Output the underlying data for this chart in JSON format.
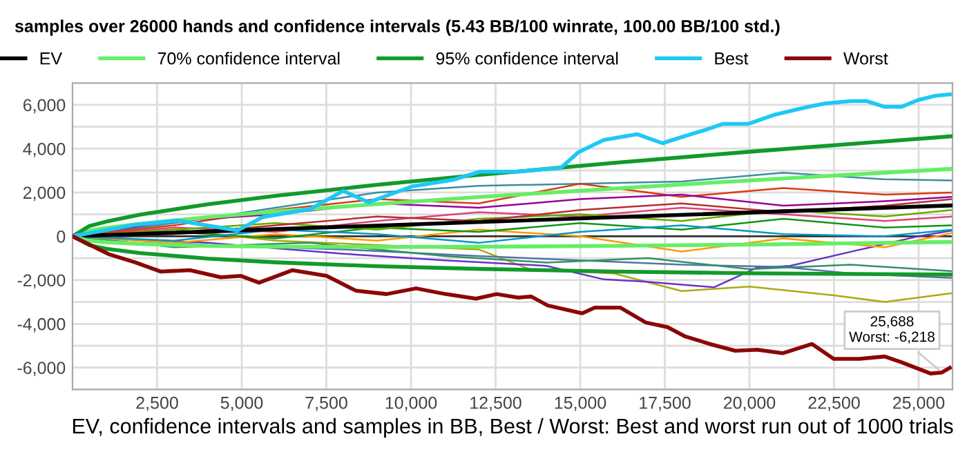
{
  "chart_data": {
    "type": "line",
    "title": "samples over 26000 hands and confidence intervals (5.43 BB/100 winrate, 100.00 BB/100 std.)",
    "xlabel": "EV, confidence intervals and samples in BB, Best / Worst: Best and worst run out of 1000 trials",
    "xlim": [
      0,
      26000
    ],
    "xticks": [
      {
        "value": 2500,
        "label": "2,500"
      },
      {
        "value": 5000,
        "label": "5,000"
      },
      {
        "value": 7500,
        "label": "7,500"
      },
      {
        "value": 10000,
        "label": "10,000"
      },
      {
        "value": 12500,
        "label": "12,500"
      },
      {
        "value": 15000,
        "label": "15,000"
      },
      {
        "value": 17500,
        "label": "17,500"
      },
      {
        "value": 20000,
        "label": "20,000"
      },
      {
        "value": 22500,
        "label": "22,500"
      },
      {
        "value": 25000,
        "label": "25,000"
      }
    ],
    "ylim": [
      -7000,
      7000
    ],
    "yticks": [
      {
        "value": -7000,
        "label": null
      },
      {
        "value": -6000,
        "label": "-6,000"
      },
      {
        "value": -5000,
        "label": null
      },
      {
        "value": -4000,
        "label": "-4,000"
      },
      {
        "value": -3000,
        "label": null
      },
      {
        "value": -2000,
        "label": "-2,000"
      },
      {
        "value": -1000,
        "label": null
      },
      0,
      {
        "value": 1000,
        "label": null
      },
      {
        "value": 2000,
        "label": "2,000"
      },
      {
        "value": 3000,
        "label": null
      },
      {
        "value": 4000,
        "label": "4,000"
      },
      {
        "value": 5000,
        "label": null
      },
      {
        "value": 6000,
        "label": "6,000"
      },
      {
        "value": 7000,
        "label": null
      }
    ],
    "grid": true,
    "legend": "top",
    "marker": "none",
    "line_style": "solid",
    "ref_lines": [
      {
        "axis": "y",
        "value": 0,
        "color": "#333333"
      }
    ],
    "annotations": [
      {
        "text": "25,688\nWorst: -6,218",
        "x": 25688,
        "y": -6218
      }
    ],
    "series": [
      {
        "color": "#3b8ea5",
        "x": [
          0,
          3000,
          6000,
          9000,
          12000,
          15000,
          18000,
          21000,
          24000,
          26000
        ],
        "values": [
          0,
          600,
          1300,
          2000,
          2300,
          2400,
          2500,
          2900,
          2600,
          2550
        ]
      },
      {
        "color": "#aaaa11",
        "x": [
          0,
          3000,
          6000,
          9000,
          12000,
          13500,
          16000,
          18000,
          20000,
          22500,
          24000,
          26000
        ],
        "values": [
          0,
          300,
          -200,
          -400,
          -600,
          -1500,
          -1700,
          -2500,
          -2300,
          -2700,
          -3000,
          -2600
        ]
      },
      {
        "color": "#6633cc",
        "x": [
          0,
          4000,
          8000,
          11000,
          14000,
          15700,
          16900,
          18950,
          20200,
          21200,
          23100,
          25000,
          26000
        ],
        "values": [
          0,
          -300,
          -800,
          -1100,
          -1350,
          -1970,
          -2070,
          -2330,
          -1450,
          -1350,
          -670,
          0,
          260
        ]
      },
      {
        "color": "#5574a6",
        "x": [
          0,
          4000,
          8000,
          12000,
          15000,
          18000,
          21000,
          23000,
          26000
        ],
        "values": [
          0,
          -400,
          -600,
          -900,
          -1100,
          -1300,
          -1400,
          -1700,
          -1900
        ]
      },
      {
        "color": "#329262",
        "x": [
          0,
          3000,
          7000,
          11000,
          14000,
          17000,
          20000,
          23000,
          26000
        ],
        "values": [
          0,
          -500,
          -300,
          -900,
          -1200,
          -1000,
          -1500,
          -1300,
          -1600
        ]
      },
      {
        "color": "#dd4477",
        "x": [
          0,
          3000,
          6000,
          9000,
          12000,
          15000,
          18000,
          21000,
          24000,
          26000
        ],
        "values": [
          0,
          400,
          200,
          700,
          1100,
          900,
          1300,
          1000,
          700,
          900
        ]
      },
      {
        "color": "#ff9900",
        "x": [
          0,
          3000,
          6000,
          9000,
          12000,
          15000,
          18000,
          21000,
          24000,
          26000
        ],
        "values": [
          0,
          -300,
          100,
          -200,
          300,
          0,
          -700,
          -100,
          -500,
          150
        ]
      },
      {
        "color": "#dc3912",
        "x": [
          0,
          3000,
          6000,
          9000,
          12000,
          15000,
          18000,
          21000,
          24000,
          26000
        ],
        "values": [
          0,
          500,
          1200,
          1700,
          1500,
          2400,
          1800,
          2200,
          1900,
          2000
        ]
      },
      {
        "color": "#990099",
        "x": [
          0,
          3000,
          6000,
          9000,
          12000,
          15000,
          18000,
          21000,
          24000,
          26000
        ],
        "values": [
          0,
          700,
          1000,
          1500,
          1300,
          1700,
          1900,
          1400,
          1600,
          1800
        ]
      },
      {
        "color": "#109618",
        "x": [
          0,
          3000,
          6000,
          9000,
          12000,
          15000,
          18000,
          21000,
          24000,
          26000
        ],
        "values": [
          0,
          200,
          -100,
          400,
          200,
          600,
          300,
          800,
          400,
          500
        ]
      },
      {
        "color": "#0099c6",
        "x": [
          0,
          3000,
          6000,
          9000,
          12000,
          15000,
          18000,
          21000,
          24000,
          26000
        ],
        "values": [
          0,
          -200,
          300,
          100,
          -300,
          200,
          500,
          100,
          0,
          300
        ]
      },
      {
        "color": "#66aa00",
        "x": [
          0,
          3000,
          6000,
          9000,
          12000,
          15000,
          18000,
          21000,
          24000,
          26000
        ],
        "values": [
          0,
          300,
          600,
          300,
          800,
          1000,
          700,
          1200,
          900,
          1200
        ]
      },
      {
        "color": "#b82e2e",
        "x": [
          0,
          3000,
          6000,
          9000,
          12000,
          15000,
          18000,
          21000,
          24000,
          26000
        ],
        "values": [
          0,
          100,
          500,
          900,
          700,
          1200,
          1500,
          1100,
          1400,
          1700
        ]
      },
      {
        "name": "EV",
        "color": "#000000",
        "x": [
          0,
          26000
        ],
        "values": [
          0,
          1410
        ]
      },
      {
        "name": "70% confidence interval",
        "color": "#66ee66",
        "x": [
          0,
          500,
          1000,
          2000,
          4000,
          6000,
          9000,
          12000,
          16000,
          20000,
          26000
        ],
        "values": [
          0,
          260,
          380,
          570,
          870,
          1130,
          1470,
          1790,
          2180,
          2550,
          3080
        ]
      },
      {
        "color": "#66ee66",
        "x": [
          0,
          500,
          1000,
          2000,
          4000,
          6000,
          9000,
          12000,
          16000,
          20000,
          26000
        ],
        "values": [
          0,
          -210,
          -270,
          -350,
          -440,
          -480,
          -490,
          -480,
          -440,
          -380,
          -260
        ]
      },
      {
        "name": "95% confidence interval",
        "color": "#129a2a",
        "x": [
          0,
          500,
          1000,
          2000,
          4000,
          6000,
          9000,
          12000,
          16000,
          20000,
          26000
        ],
        "values": [
          0,
          470,
          670,
          990,
          1460,
          1850,
          2350,
          2800,
          3350,
          3860,
          4570
        ]
      },
      {
        "color": "#129a2a",
        "x": [
          0,
          500,
          1000,
          2000,
          4000,
          6000,
          9000,
          12000,
          16000,
          20000,
          26000
        ],
        "values": [
          0,
          -410,
          -570,
          -770,
          -1020,
          -1190,
          -1370,
          -1490,
          -1610,
          -1690,
          -1750
        ]
      },
      {
        "name": "Best",
        "color": "#1ec8f5",
        "x": [
          0,
          1850,
          3100,
          4870,
          5620,
          7020,
          8000,
          8750,
          10040,
          11280,
          12040,
          13170,
          13920,
          14420,
          14940,
          15700,
          16680,
          17430,
          17960,
          18720,
          19210,
          19960,
          20720,
          21740,
          22230,
          22980,
          23470,
          24000,
          24490,
          24980,
          25510,
          25920
        ],
        "values": [
          0,
          520,
          720,
          260,
          880,
          1240,
          2070,
          1550,
          2280,
          2590,
          2950,
          2950,
          3060,
          3110,
          3830,
          4400,
          4660,
          4250,
          4510,
          4870,
          5130,
          5130,
          5540,
          5910,
          6060,
          6170,
          6170,
          5910,
          5910,
          6220,
          6420,
          6480
        ]
      },
      {
        "name": "Worst",
        "color": "#8b0707",
        "x": [
          0,
          1090,
          1850,
          2600,
          3470,
          4380,
          4980,
          5510,
          6490,
          7510,
          8380,
          9280,
          10150,
          11020,
          11920,
          12530,
          13170,
          13550,
          14040,
          15060,
          15430,
          16190,
          16940,
          17580,
          18080,
          18830,
          19580,
          20230,
          20980,
          21850,
          22490,
          23250,
          24000,
          24490,
          25360,
          25688,
          25920
        ],
        "values": [
          0,
          -830,
          -1190,
          -1610,
          -1550,
          -1870,
          -1810,
          -2120,
          -1550,
          -1810,
          -2490,
          -2640,
          -2380,
          -2640,
          -2850,
          -2640,
          -2800,
          -2750,
          -3160,
          -3520,
          -3260,
          -3260,
          -3940,
          -4150,
          -4560,
          -4920,
          -5230,
          -5180,
          -5340,
          -4920,
          -5600,
          -5600,
          -5490,
          -5750,
          -6270,
          -6218,
          -6010
        ]
      }
    ]
  }
}
